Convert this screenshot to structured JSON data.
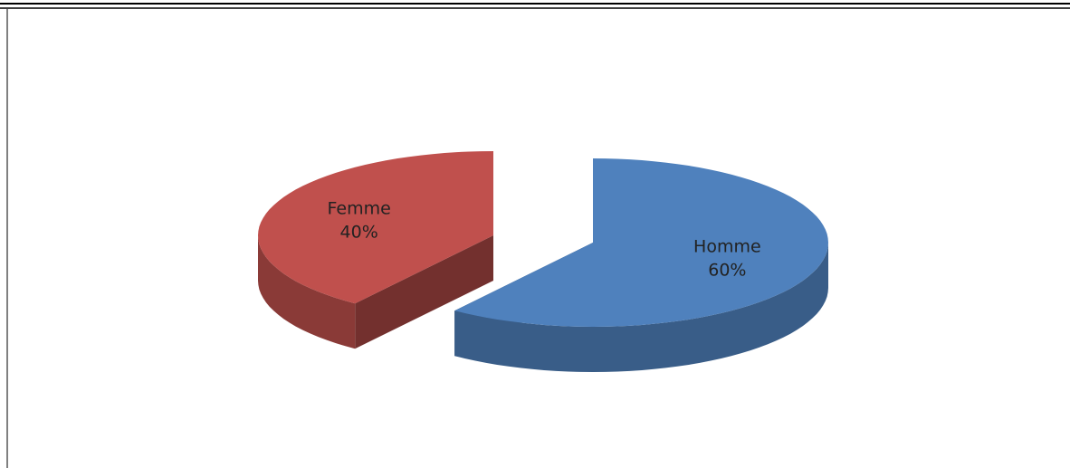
{
  "chart_data": {
    "type": "pie",
    "categories": [
      "Femme",
      "Homme"
    ],
    "values": [
      40,
      60
    ],
    "value_labels": [
      "40%",
      "60%"
    ],
    "colors": [
      "#c0504d",
      "#4f81bd"
    ]
  }
}
